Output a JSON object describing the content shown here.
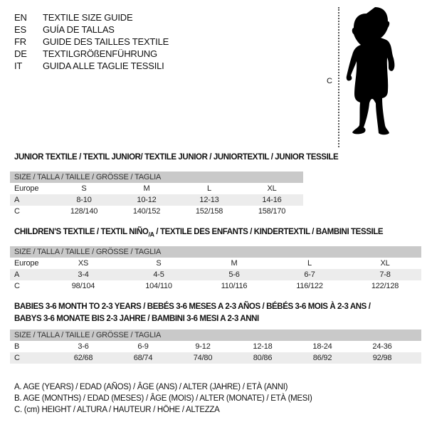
{
  "languages": [
    {
      "code": "EN",
      "title": "TEXTILE SIZE GUIDE"
    },
    {
      "code": "ES",
      "title": "GUÍA DE TALLAS"
    },
    {
      "code": "FR",
      "title": "GUIDE DES TAILLES TEXTILE"
    },
    {
      "code": "DE",
      "title": "TEXTILGRÖßENFÜHRUNG"
    },
    {
      "code": "IT",
      "title": "GUIDA ALLE TAGLIE TESSILI"
    }
  ],
  "figure": {
    "measure_label": "C",
    "icon": "child-silhouette"
  },
  "header_label": "SIZE / TALLA / TAILLE / GRÖSSE / TAGLIA",
  "junior": {
    "title": "JUNIOR TEXTILE / TEXTIL JUNIOR/ TEXTILE JUNIOR / JUNIORTEXTIL / JUNIOR TESSILE",
    "rows": [
      {
        "label": "Europe",
        "values": [
          "S",
          "M",
          "L",
          "XL"
        ]
      },
      {
        "label": "A",
        "values": [
          "8-10",
          "10-12",
          "12-13",
          "14-16"
        ]
      },
      {
        "label": "C",
        "values": [
          "128/140",
          "140/152",
          "152/158",
          "158/170"
        ]
      }
    ]
  },
  "children": {
    "title_a": "CHILDREN'S TEXTILE / TEXTIL NIÑO",
    "title_sub": "/A",
    "title_b": " / TEXTILE DES ENFANTS / KINDERTEXTIL / BAMBINI TESSILE",
    "rows": [
      {
        "label": "Europe",
        "values": [
          "XS",
          "S",
          "M",
          "L",
          "XL"
        ]
      },
      {
        "label": "A",
        "values": [
          "3-4",
          "4-5",
          "5-6",
          "6-7",
          "7-8"
        ]
      },
      {
        "label": "C",
        "values": [
          "98/104",
          "104/110",
          "110/116",
          "116/122",
          "122/128"
        ]
      }
    ]
  },
  "babies": {
    "title_line1": "BABIES 3-6 MONTH TO 2-3 YEARS / BEBÉS 3-6 MESES A 2-3 AÑOS / BÉBÉS 3-6 MOIS À 2-3 ANS /",
    "title_line2": "BABYS 3-6 MONATE BIS 2-3 JAHRE / BAMBINI 3-6 MESI A 2-3 ANNI",
    "rows": [
      {
        "label": "B",
        "values": [
          "3-6",
          "6-9",
          "9-12",
          "12-18",
          "18-24",
          "24-36"
        ]
      },
      {
        "label": "C",
        "values": [
          "62/68",
          "68/74",
          "74/80",
          "80/86",
          "86/92",
          "92/98"
        ]
      }
    ]
  },
  "legend": [
    "A. AGE (YEARS) / EDAD (AÑOS) / ÂGE (ANS) / ALTER (JAHRE) / ETÀ (ANNI)",
    "B. AGE (MONTHS) / EDAD (MESES) / ÂGE (MOIS) / ALTER (MONATE) / ETÀ (MESI)",
    "C. (cm) HEIGHT / ALTURA / HAUTEUR / HÖHE / ALTEZZA"
  ]
}
